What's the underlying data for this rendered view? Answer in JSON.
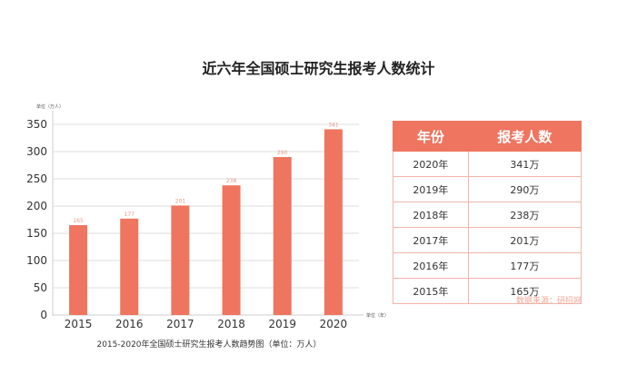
{
  "title": "近六年全国硕士研究生报考人数统计",
  "chart_data": {
    "type": "bar",
    "categories": [
      "2015",
      "2016",
      "2017",
      "2018",
      "2019",
      "2020"
    ],
    "values": [
      165,
      177,
      201,
      238,
      290,
      341
    ],
    "data_labels": [
      "165",
      "177",
      "201",
      "238",
      "290",
      "341"
    ],
    "title": "2015-2020年全国硕士研究生报考人数趋势图（单位：万人）",
    "xlabel": "单位（年）",
    "ylabel": "单位（万人）",
    "ylim": [
      0,
      350
    ],
    "yticks": [
      "0",
      "50",
      "100",
      "150",
      "200",
      "250",
      "300",
      "350"
    ],
    "grid": true,
    "bar_color": "#ef7560"
  },
  "table": {
    "headers": [
      "年份",
      "报考人数"
    ],
    "rows": [
      [
        "2020年",
        "341万"
      ],
      [
        "2019年",
        "290万"
      ],
      [
        "2018年",
        "238万"
      ],
      [
        "2017年",
        "201万"
      ],
      [
        "2016年",
        "177万"
      ],
      [
        "2015年",
        "165万"
      ]
    ],
    "header_color": "#ef7560"
  },
  "source": "数据来源：研招网"
}
